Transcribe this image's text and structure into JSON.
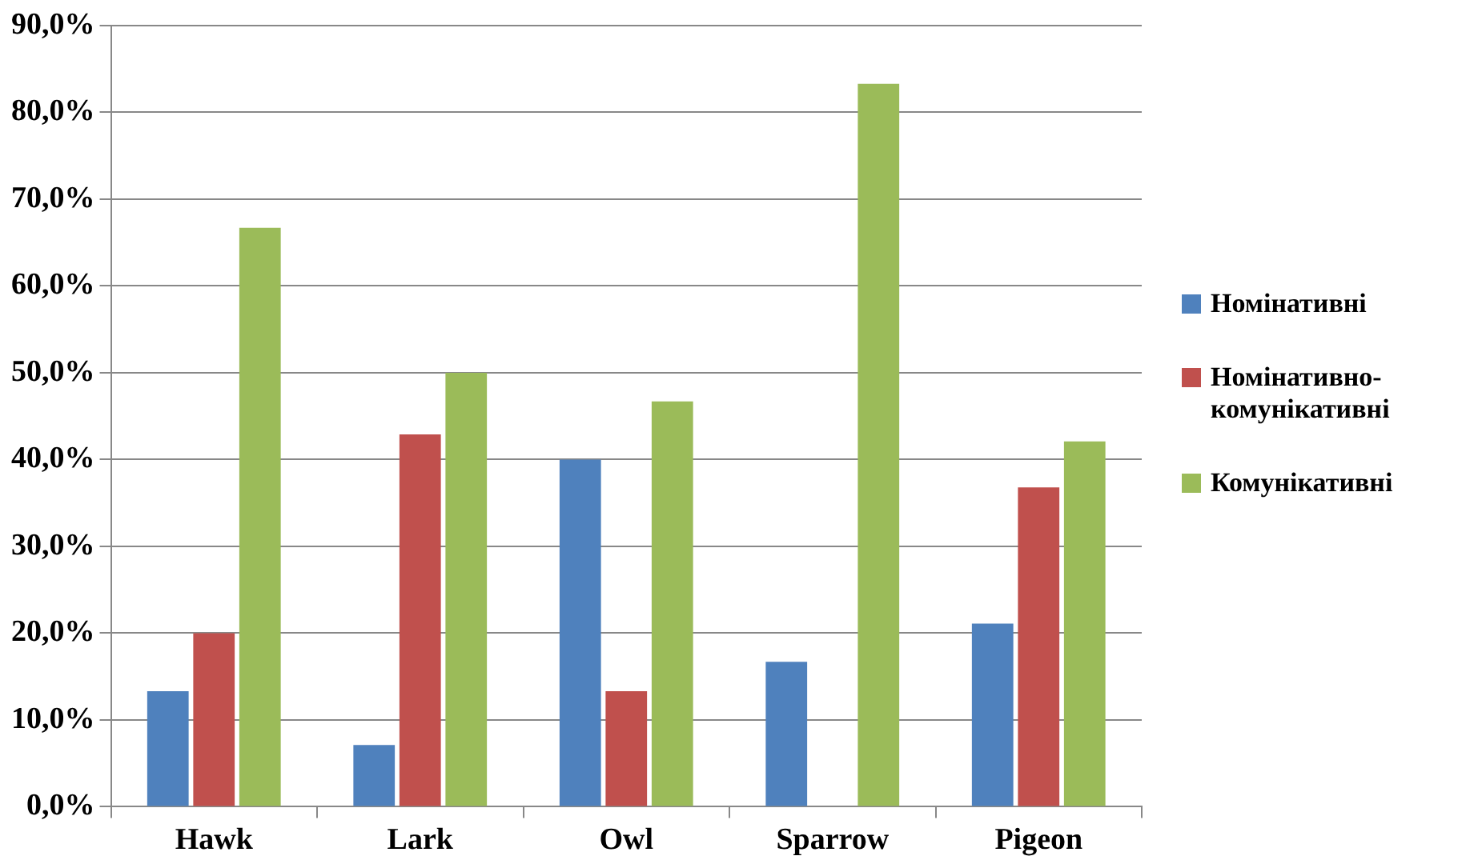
{
  "chart_data": {
    "type": "bar",
    "categories": [
      "Hawk",
      "Lark",
      "Owl",
      "Sparrow",
      "Pigeon"
    ],
    "series": [
      {
        "name": "Номінативні",
        "color": "#4f81bd",
        "values": [
          13.3,
          7.1,
          40.0,
          16.7,
          21.1
        ]
      },
      {
        "name": "Номінативно-комунікативні",
        "color": "#c0504d",
        "values": [
          20.0,
          42.9,
          13.3,
          0,
          36.8
        ]
      },
      {
        "name": "Комунікативні",
        "color": "#9bbb59",
        "values": [
          66.7,
          50.0,
          46.7,
          83.3,
          42.1
        ]
      }
    ],
    "ylim": [
      0,
      90
    ],
    "yticks": [
      {
        "value": 0,
        "label": "0,0%"
      },
      {
        "value": 10,
        "label": "10,0%"
      },
      {
        "value": 20,
        "label": "20,0%"
      },
      {
        "value": 30,
        "label": "30,0%"
      },
      {
        "value": 40,
        "label": "40,0%"
      },
      {
        "value": 50,
        "label": "50,0%"
      },
      {
        "value": 60,
        "label": "60,0%"
      },
      {
        "value": 70,
        "label": "70,0%"
      },
      {
        "value": 80,
        "label": "80,0%"
      },
      {
        "value": 90,
        "label": "90,0%"
      }
    ],
    "grid": "y",
    "legend": "right"
  }
}
